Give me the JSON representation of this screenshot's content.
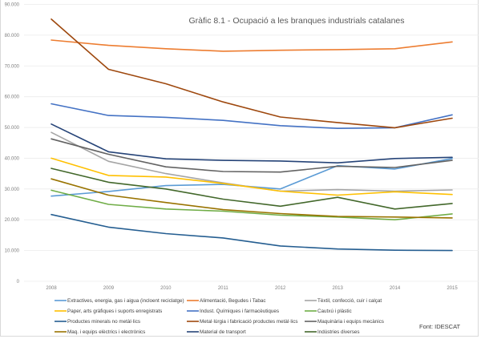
{
  "chart_data": {
    "type": "line",
    "title": "Gràfic 8.1 - Ocupació a les branques industrials catalanes",
    "xlabel": "",
    "ylabel": "",
    "x": [
      "2008",
      "2009",
      "2010",
      "2011",
      "2012",
      "2013",
      "2014",
      "2015"
    ],
    "ylim": [
      0,
      90000
    ],
    "yticks": [
      0,
      10000,
      20000,
      30000,
      40000,
      50000,
      60000,
      70000,
      80000,
      90000
    ],
    "ytick_labels": [
      "0",
      "10.000",
      "20.000",
      "30.000",
      "40.000",
      "50.000",
      "60.000",
      "70.000",
      "80.000",
      "90.000"
    ],
    "grid": true,
    "legend_position": "bottom",
    "series": [
      {
        "name": "Extractives, energia, gas i aigua (incloent reciclatge)",
        "color": "#5B9BD5",
        "values": [
          27700,
          29200,
          31100,
          31500,
          30000,
          37600,
          36500,
          39900
        ]
      },
      {
        "name": "Alimentació, Begudes i Tabac",
        "color": "#ED7D31",
        "values": [
          78400,
          76700,
          75600,
          74800,
          75100,
          75300,
          75600,
          77800
        ]
      },
      {
        "name": "Tèxtil, confecció, cuir i calçat",
        "color": "#A5A5A5",
        "values": [
          48400,
          39000,
          35000,
          32000,
          29300,
          29800,
          29300,
          29700
        ]
      },
      {
        "name": "Paper, arts gràfiques i suports enregistrats",
        "color": "#FFC000",
        "values": [
          40000,
          34400,
          33900,
          31800,
          29300,
          28000,
          29100,
          28200
        ]
      },
      {
        "name": "Indust. Químiques i farmacèutiques",
        "color": "#4472C4",
        "values": [
          57700,
          53900,
          53300,
          52300,
          50600,
          49700,
          49900,
          54100
        ]
      },
      {
        "name": "Cautxú i plàstic",
        "color": "#70AD47",
        "values": [
          29600,
          25000,
          23500,
          22800,
          21500,
          20900,
          20000,
          21900
        ]
      },
      {
        "name": "Productes minerals no metàl·lics",
        "color": "#255E91",
        "values": [
          21700,
          17600,
          15500,
          14100,
          11500,
          10500,
          10100,
          10000
        ]
      },
      {
        "name": "Metal·lúrgia i fabricació productes metàl·lics",
        "color": "#9E480E",
        "values": [
          85200,
          68900,
          64200,
          58300,
          53400,
          51600,
          49900,
          53000
        ]
      },
      {
        "name": "Maquinària i equips mecànics",
        "color": "#636363",
        "values": [
          46300,
          41300,
          37200,
          35700,
          35500,
          37400,
          37000,
          39300
        ]
      },
      {
        "name": "Maq. i equips elèctrics i electrònics",
        "color": "#997300",
        "values": [
          33300,
          28000,
          25600,
          23300,
          22000,
          21100,
          20900,
          20600
        ]
      },
      {
        "name": "Material de transport",
        "color": "#264478",
        "values": [
          51100,
          42100,
          39800,
          39300,
          39100,
          38500,
          39900,
          40300
        ]
      },
      {
        "name": "Indústries diverses",
        "color": "#43682B",
        "values": [
          36700,
          32200,
          30000,
          26700,
          24400,
          27300,
          23500,
          25300
        ]
      }
    ],
    "legend_order": [
      0,
      1,
      2,
      3,
      4,
      5,
      6,
      7,
      8,
      9,
      10,
      11
    ],
    "gridline_color": "#ebebeb",
    "source_note": "Font: IDESCAT"
  }
}
